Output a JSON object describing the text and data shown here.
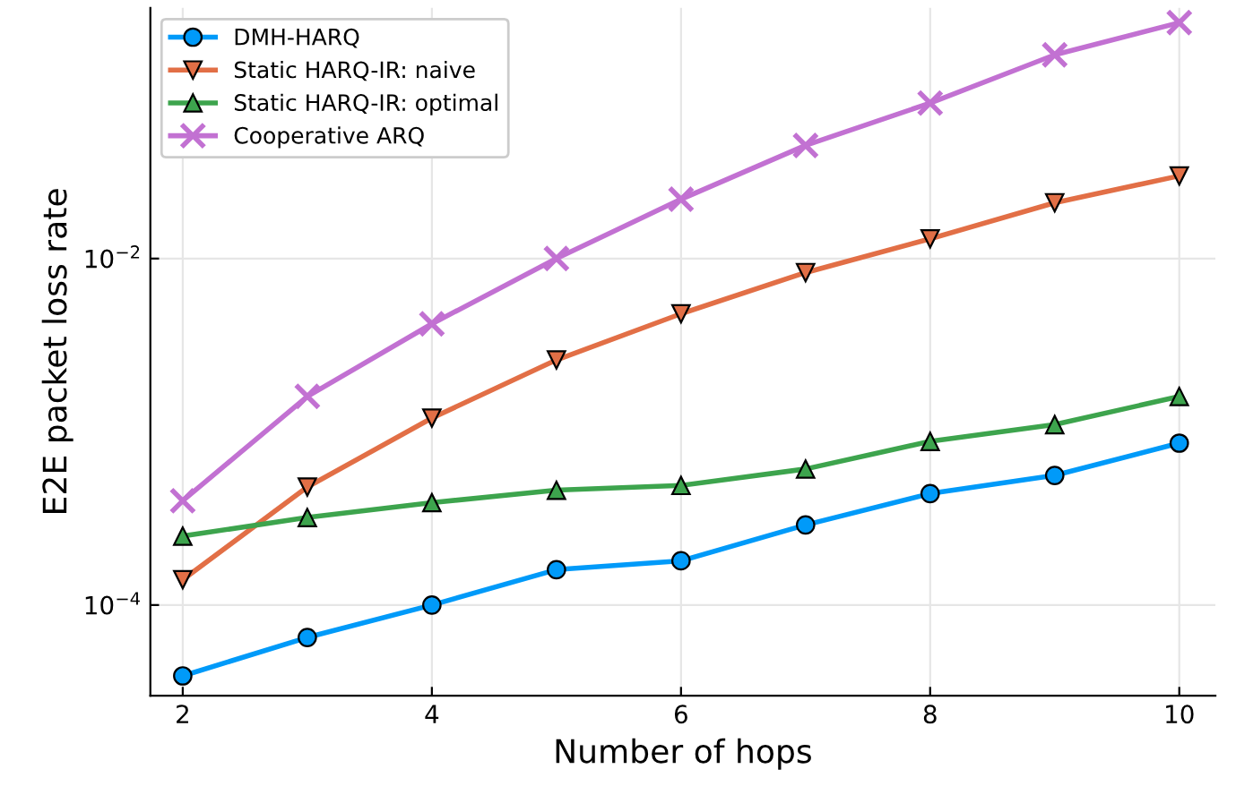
{
  "chart_data": {
    "type": "line",
    "xlabel": "Number of hops",
    "ylabel": "E2E packet loss rate",
    "x": [
      2,
      3,
      4,
      5,
      6,
      7,
      8,
      9,
      10
    ],
    "series": [
      {
        "name": "DMH-HARQ",
        "color": "#009af9",
        "marker": "circle",
        "values": [
          3.9e-05,
          6.5e-05,
          0.0001,
          0.00016,
          0.00018,
          0.00029,
          0.00044,
          0.00056,
          0.00086
        ]
      },
      {
        "name": "Static HARQ-IR: naive",
        "color": "#e26f46",
        "marker": "triangle_down",
        "values": [
          0.00014,
          0.00048,
          0.0012,
          0.0026,
          0.0048,
          0.0083,
          0.013,
          0.021,
          0.03
        ]
      },
      {
        "name": "Static HARQ-IR: optimal",
        "color": "#3da44d",
        "marker": "triangle",
        "values": [
          0.00025,
          0.00032,
          0.00039,
          0.00046,
          0.00049,
          0.00061,
          0.00088,
          0.0011,
          0.0016
        ]
      },
      {
        "name": "Cooperative ARQ",
        "color": "#c271d2",
        "marker": "cross",
        "values": [
          0.0004,
          0.0016,
          0.0042,
          0.01,
          0.022,
          0.045,
          0.079,
          0.15,
          0.23
        ]
      }
    ],
    "log": "y",
    "xlim": [
      1.74,
      10.29
    ],
    "ylim": [
      3e-05,
      0.28
    ],
    "xticks": [
      2,
      4,
      6,
      8,
      10
    ],
    "yticks": [
      {
        "value": 0.0001,
        "label": "10$^{−4}$"
      },
      {
        "value": 0.01,
        "label": "10$^{−2}$"
      }
    ],
    "grid": true,
    "legend": "top left",
    "line_style": "solid"
  }
}
